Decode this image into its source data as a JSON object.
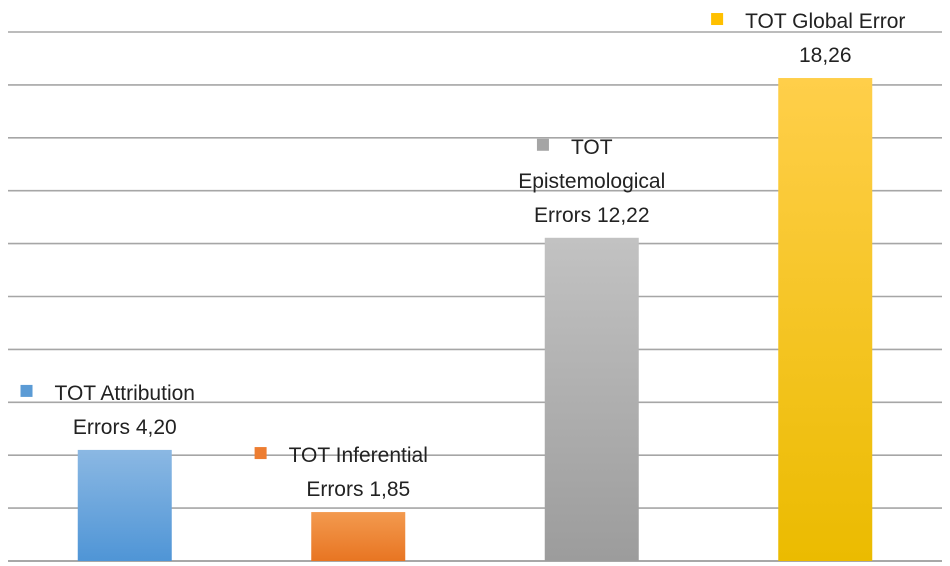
{
  "chart_data": {
    "type": "bar",
    "categories": [
      "TOT  Attribution Errors",
      "TOT Inferential Errors",
      "TOT Epistemological Errors",
      "TOT Global Error"
    ],
    "values": [
      4.2,
      1.85,
      12.22,
      18.26
    ],
    "data_labels": [
      [
        "TOT  Attribution",
        "Errors 4,20"
      ],
      [
        "TOT Inferential",
        "Errors 1,85"
      ],
      [
        "TOT",
        "Epistemological",
        "Errors 12,22"
      ],
      [
        "TOT Global Error",
        "18,26"
      ]
    ],
    "colors": [
      "#5b9bd5",
      "#ed7d31",
      "#a5a5a5",
      "#ffc000"
    ],
    "ylim": [
      0,
      20
    ],
    "gridlines": 10,
    "grid": true,
    "title": "",
    "xlabel": "",
    "ylabel": ""
  }
}
